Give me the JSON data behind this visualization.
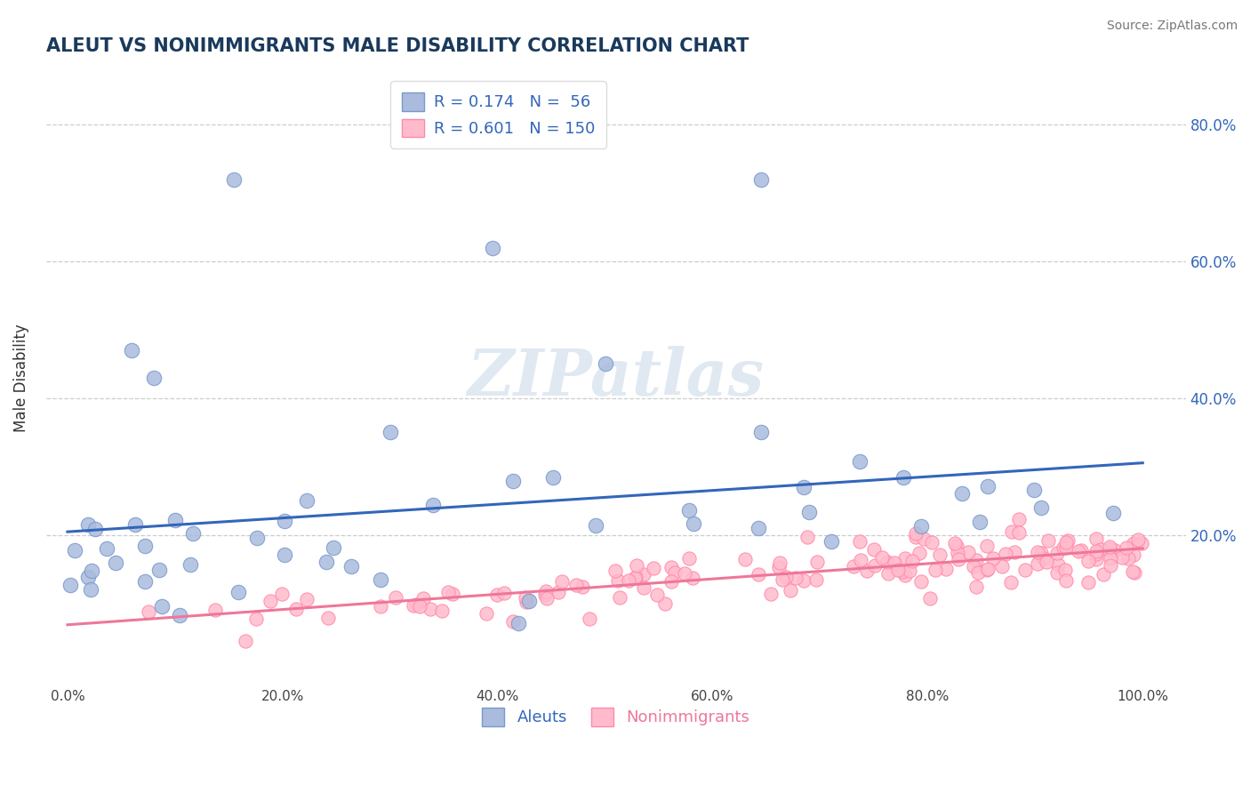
{
  "title": "ALEUT VS NONIMMIGRANTS MALE DISABILITY CORRELATION CHART",
  "source": "Source: ZipAtlas.com",
  "ylabel": "Male Disability",
  "right_ytick_labels": [
    "80.0%",
    "60.0%",
    "40.0%",
    "20.0%"
  ],
  "right_ytick_values": [
    0.8,
    0.6,
    0.4,
    0.2
  ],
  "xtick_labels": [
    "0.0%",
    "",
    "20.0%",
    "",
    "40.0%",
    "",
    "60.0%",
    "",
    "80.0%",
    "",
    "100.0%"
  ],
  "xtick_values": [
    0.0,
    0.1,
    0.2,
    0.3,
    0.4,
    0.5,
    0.6,
    0.7,
    0.8,
    0.9,
    1.0
  ],
  "xlim": [
    -0.02,
    1.04
  ],
  "ylim": [
    -0.02,
    0.88
  ],
  "aleut_color": "#aabbdd",
  "aleut_edge_color": "#7799cc",
  "nonimmigrant_color": "#ffbbcc",
  "nonimmigrant_edge_color": "#ff88aa",
  "aleut_line_color": "#3366bb",
  "nonimmigrant_line_color": "#ee7799",
  "aleut_R": 0.174,
  "aleut_N": 56,
  "nonimmigrant_R": 0.601,
  "nonimmigrant_N": 150,
  "legend_label_aleut": "Aleuts",
  "legend_label_nonimmigrant": "Nonimmigrants",
  "title_color": "#1a3a5c",
  "source_color": "#777777",
  "watermark": "ZIPatlas",
  "background_color": "#ffffff",
  "grid_color": "#cccccc",
  "aleut_seed": 42,
  "nonimm_seed": 99,
  "legend_R_color": "#3366bb",
  "legend_border_color": "#dddddd"
}
